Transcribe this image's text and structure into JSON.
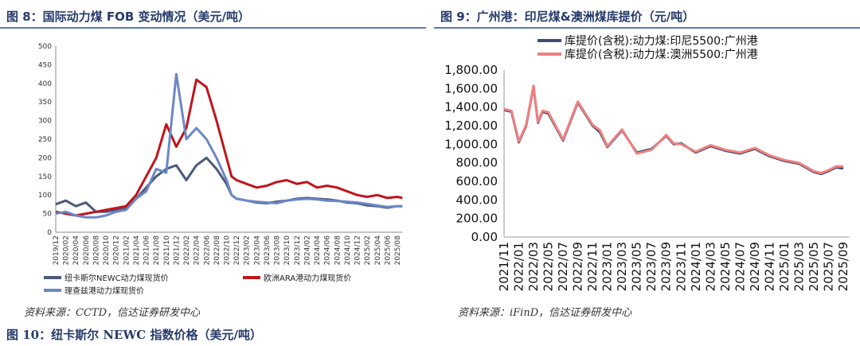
{
  "left": {
    "title": "图 8：国际动力煤 FOB 变动情况（美元/吨）",
    "source": "资料来源：CCTD，信达证券研发中心"
  },
  "right": {
    "title": "图 9：广州港：印尼煤&澳洲煤库提价（元/吨）",
    "source": "资料来源：iFinD，信达证券研发中心"
  },
  "next_title": "图 10：纽卡斯尔 NEWC 指数价格（美元/吨）",
  "colors": {
    "blue": "#4a5a7a",
    "red": "#c0141c",
    "lightblue": "#6c86c8",
    "pink": "#f08080",
    "navy": "#3f4d72"
  },
  "chart_data": [
    {
      "type": "line",
      "title": "国际动力煤 FOB 变动情况（美元/吨）",
      "ylim": [
        0,
        500
      ],
      "yticks": [
        0,
        50,
        100,
        150,
        200,
        250,
        300,
        350,
        400,
        450,
        500
      ],
      "categories": [
        "2019/12",
        "2020/02",
        "2020/04",
        "2020/06",
        "2020/08",
        "2020/10",
        "2020/12",
        "2021/02",
        "2021/04",
        "2021/06",
        "2021/08",
        "2021/10",
        "2021/12",
        "2022/02",
        "2022/04",
        "2022/06",
        "2022/08",
        "2022/10",
        "2022/12",
        "2023/02",
        "2023/04",
        "2023/06",
        "2023/08",
        "2023/10",
        "2023/12",
        "2024/02",
        "2024/04",
        "2024/06",
        "2024/08",
        "2024/10",
        "2024/12",
        "2025/02",
        "2025/04",
        "2025/06",
        "2025/08"
      ],
      "series": [
        {
          "name": "纽卡斯尔NEWC动力煤现货价",
          "color": "#4a5a7a",
          "x": [
            0,
            1,
            2,
            3,
            4,
            5,
            6,
            7,
            8,
            9,
            10,
            11,
            12,
            13,
            14,
            15,
            16,
            17,
            17.5,
            18,
            19,
            20,
            21,
            22,
            23,
            24,
            25,
            26,
            27,
            28,
            29,
            30,
            31,
            32,
            33,
            34,
            34.5
          ],
          "values": [
            75,
            85,
            70,
            80,
            55,
            55,
            60,
            65,
            90,
            120,
            150,
            170,
            180,
            140,
            180,
            200,
            170,
            130,
            100,
            90,
            85,
            80,
            78,
            82,
            85,
            90,
            92,
            90,
            88,
            85,
            80,
            78,
            72,
            70,
            66,
            70,
            70
          ]
        },
        {
          "name": "欧洲ARA港动力煤现货价",
          "color": "#c0141c",
          "x": [
            0,
            1,
            2,
            3,
            4,
            5,
            6,
            7,
            8,
            9,
            10,
            11,
            12,
            13,
            14,
            15,
            16,
            17,
            17.5,
            18,
            19,
            20,
            21,
            22,
            23,
            24,
            25,
            26,
            27,
            28,
            29,
            30,
            31,
            32,
            33,
            34,
            34.5
          ],
          "values": [
            55,
            50,
            45,
            50,
            55,
            60,
            65,
            70,
            100,
            150,
            200,
            290,
            230,
            280,
            410,
            390,
            300,
            200,
            150,
            140,
            130,
            120,
            125,
            135,
            140,
            130,
            135,
            120,
            125,
            120,
            110,
            100,
            95,
            100,
            92,
            95,
            92
          ]
        },
        {
          "name": "理查兹港动力煤现货价",
          "color": "#6c86c8",
          "x": [
            0,
            1,
            2,
            3,
            4,
            5,
            6,
            7,
            8,
            9,
            10,
            11,
            12,
            13,
            14,
            15,
            16,
            17,
            17.5,
            18,
            19,
            20,
            21,
            22,
            23,
            24,
            25,
            26,
            27,
            28,
            29,
            30,
            31,
            32,
            33,
            34,
            34.5
          ],
          "values": [
            50,
            55,
            45,
            40,
            40,
            45,
            55,
            60,
            90,
            110,
            170,
            160,
            425,
            250,
            280,
            250,
            200,
            140,
            100,
            90,
            85,
            82,
            80,
            78,
            85,
            88,
            90,
            88,
            85,
            84,
            82,
            80,
            76,
            72,
            68,
            70,
            70
          ]
        }
      ]
    },
    {
      "type": "line",
      "title": "广州港：印尼煤&澳洲煤库提价（元/吨）",
      "ylim": [
        0,
        1800
      ],
      "yticks": [
        "0.00",
        "200.00",
        "400.00",
        "600.00",
        "800.00",
        "1,000.00",
        "1,200.00",
        "1,400.00",
        "1,600.00",
        "1,800.00"
      ],
      "categories": [
        "2021/11",
        "2022/01",
        "2022/03",
        "2022/05",
        "2022/07",
        "2022/09",
        "2022/11",
        "2023/01",
        "2023/03",
        "2023/05",
        "2023/07",
        "2023/09",
        "2023/11",
        "2024/01",
        "2024/03",
        "2024/05",
        "2024/07",
        "2024/09",
        "2024/11",
        "2025/01",
        "2025/03",
        "2025/05",
        "2025/07",
        "2025/09"
      ],
      "series": [
        {
          "name": "库提价(含税):动力煤:印尼5500:广州港",
          "color": "#3f4d72",
          "x": [
            0,
            0.5,
            1,
            1.5,
            2,
            2.3,
            2.6,
            3,
            4,
            5,
            6,
            6.5,
            7,
            8,
            9,
            9.5,
            10,
            11,
            11.5,
            12,
            13,
            14,
            15,
            16,
            17,
            18,
            19,
            20,
            21,
            21.5,
            22,
            22.5,
            23
          ],
          "values": [
            1370,
            1350,
            1020,
            1200,
            1620,
            1230,
            1350,
            1330,
            1040,
            1450,
            1200,
            1130,
            970,
            1150,
            910,
            930,
            950,
            1090,
            1000,
            1010,
            910,
            980,
            930,
            900,
            950,
            870,
            820,
            790,
            700,
            680,
            710,
            750,
            740
          ]
        },
        {
          "name": "库提价(含税):动力煤:澳洲5500:广州港",
          "color": "#f08080",
          "x": [
            0,
            0.5,
            1,
            1.5,
            2,
            2.3,
            2.6,
            3,
            4,
            5,
            6,
            6.5,
            7,
            8,
            9,
            9.5,
            10,
            11,
            11.5,
            12,
            13,
            14,
            15,
            16,
            17,
            18,
            19,
            20,
            21,
            21.5,
            22,
            22.5,
            23
          ],
          "values": [
            1380,
            1360,
            1030,
            1210,
            1630,
            1240,
            1360,
            1345,
            1050,
            1460,
            1210,
            1150,
            980,
            1160,
            900,
            920,
            940,
            1100,
            1010,
            1000,
            920,
            990,
            940,
            910,
            960,
            880,
            830,
            800,
            710,
            690,
            720,
            760,
            760
          ]
        }
      ]
    }
  ]
}
